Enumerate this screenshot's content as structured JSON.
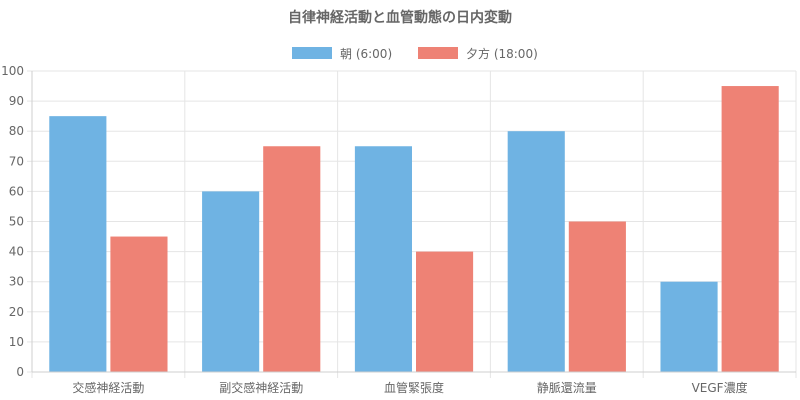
{
  "chart_data": {
    "type": "bar",
    "title": "自律神経活動と血管動態の日内変動",
    "categories": [
      "交感神経活動",
      "副交感神経活動",
      "血管緊張度",
      "静脈還流量",
      "VEGF濃度"
    ],
    "series": [
      {
        "name": "朝 (6:00)",
        "values": [
          85,
          60,
          75,
          80,
          30
        ],
        "color": "#6fb3e3"
      },
      {
        "name": "夕方 (18:00)",
        "values": [
          45,
          75,
          40,
          50,
          95
        ],
        "color": "#ee8275"
      }
    ],
    "ylim": [
      0,
      100
    ],
    "yticks": [
      0,
      10,
      20,
      30,
      40,
      50,
      60,
      70,
      80,
      90,
      100
    ],
    "grid": true,
    "legend_position": "top"
  }
}
